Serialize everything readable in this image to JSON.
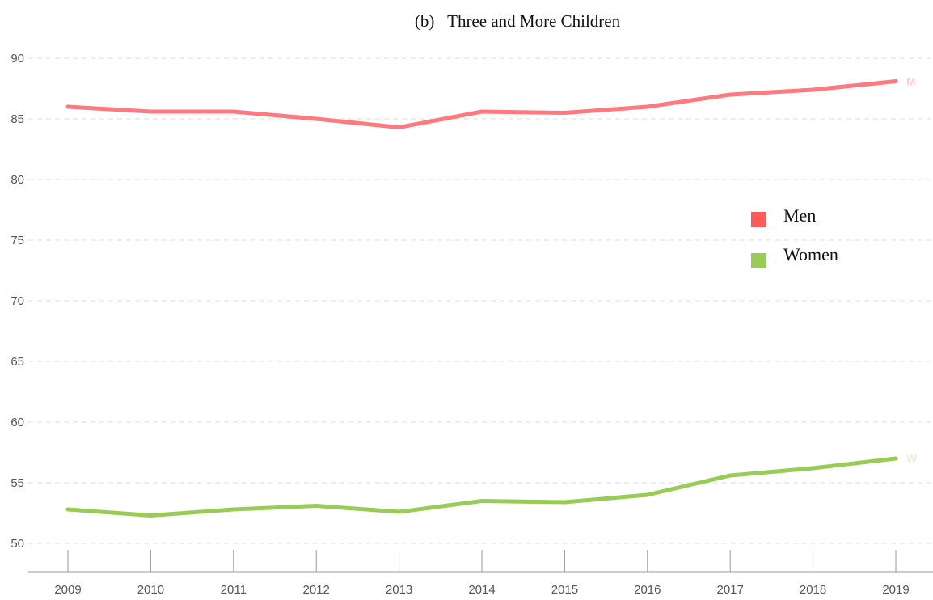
{
  "chart_data": {
    "type": "line",
    "title": "(b)   Three and More Children",
    "x": [
      "2009",
      "2010",
      "2011",
      "2012",
      "2013",
      "2014",
      "2015",
      "2016",
      "2017",
      "2018",
      "2019"
    ],
    "yticks": [
      "50",
      "55",
      "60",
      "65",
      "70",
      "75",
      "80",
      "85",
      "90"
    ],
    "ylim": [
      50,
      90
    ],
    "grid": true,
    "legend_position": "right",
    "series": [
      {
        "name": "Men",
        "end_label": "M",
        "color": "#ff7a7f",
        "legend_color": "#ff5a5a",
        "end_label_color": "#ffd0d2",
        "values": [
          86.0,
          85.6,
          85.6,
          85.0,
          84.3,
          85.6,
          85.5,
          86.0,
          87.0,
          87.4,
          88.1
        ]
      },
      {
        "name": "Women",
        "end_label": "W",
        "color": "#99cc55",
        "legend_color": "#99cc55",
        "end_label_color": "#e6f2d6",
        "values": [
          52.8,
          52.3,
          52.8,
          53.1,
          52.6,
          53.5,
          53.4,
          54.0,
          55.6,
          56.2,
          57.0
        ]
      }
    ]
  }
}
